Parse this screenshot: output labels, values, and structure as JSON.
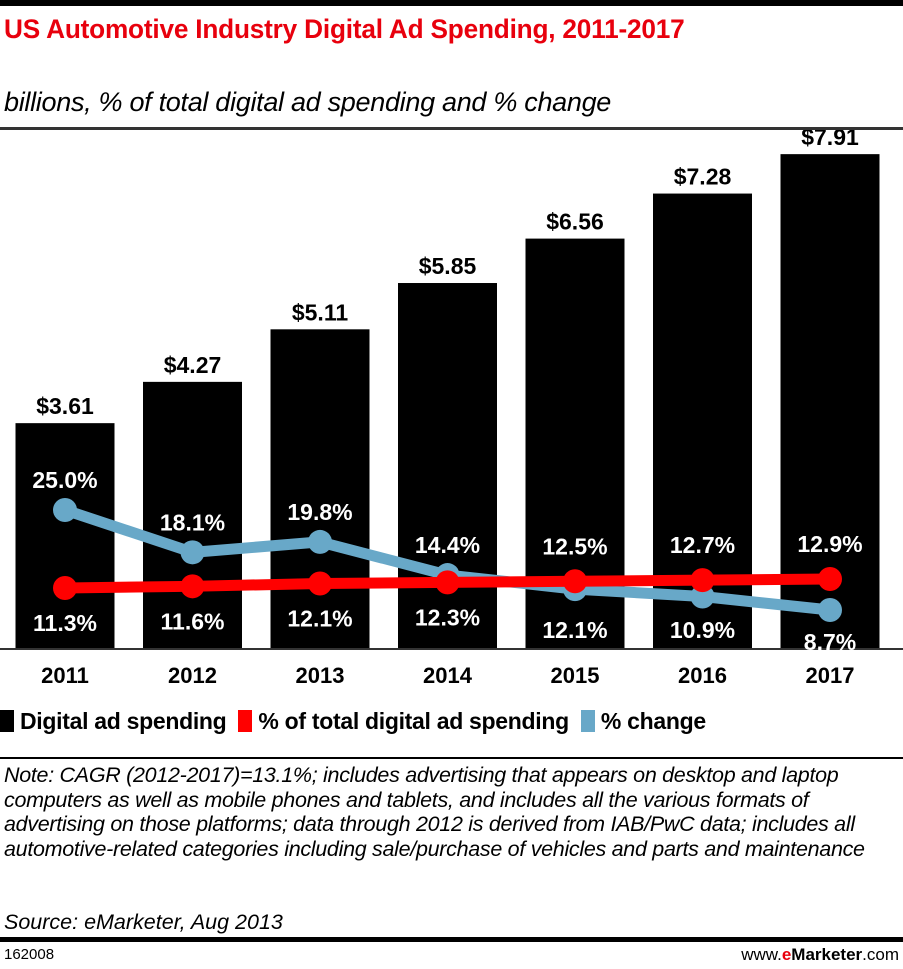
{
  "header": {
    "title": "US Automotive Industry Digital Ad Spending, 2011-2017",
    "subtitle": "billions, % of total digital ad spending and % change"
  },
  "colors": {
    "title": "#e8000d",
    "bars": "#000000",
    "share_line": "#ff0000",
    "change_line": "#68a8c8",
    "label_on_bar": "#ffffff"
  },
  "legend": {
    "items": [
      {
        "label": "Digital ad spending",
        "color": "#000000"
      },
      {
        "label": "% of total digital ad spending",
        "color": "#ff0000"
      },
      {
        "label": "% change",
        "color": "#68a8c8"
      }
    ]
  },
  "chart_data": {
    "type": "bar",
    "title": "US Automotive Industry Digital Ad Spending, 2011-2017",
    "subtitle": "billions, % of total digital ad spending and % change",
    "xlabel": "",
    "ylabel": "",
    "grid": false,
    "legend_position": "bottom",
    "categories": [
      "2011",
      "2012",
      "2013",
      "2014",
      "2015",
      "2016",
      "2017"
    ],
    "ylim": [
      0,
      8.2
    ],
    "series": [
      {
        "name": "Digital ad spending",
        "type": "bar",
        "unit": "billions USD",
        "values": [
          3.61,
          4.27,
          5.11,
          5.85,
          6.56,
          7.28,
          7.91
        ],
        "labels": [
          "$3.61",
          "$4.27",
          "$5.11",
          "$5.85",
          "$6.56",
          "$7.28",
          "$7.91"
        ]
      },
      {
        "name": "% of total digital ad spending",
        "type": "line",
        "unit": "%",
        "values": [
          11.3,
          11.6,
          12.1,
          12.3,
          12.5,
          12.7,
          12.9
        ],
        "labels": [
          "11.3%",
          "11.6%",
          "12.1%",
          "12.3%",
          "12.5%",
          "12.7%",
          "12.9%"
        ]
      },
      {
        "name": "% change",
        "type": "line",
        "unit": "%",
        "values": [
          25.0,
          18.1,
          19.8,
          14.4,
          12.1,
          10.9,
          8.7
        ],
        "labels": [
          "25.0%",
          "18.1%",
          "19.8%",
          "14.4%",
          "12.1%",
          "10.9%",
          "8.7%"
        ]
      }
    ]
  },
  "footer": {
    "note": "Note: CAGR (2012-2017)=13.1%; includes advertising that appears on desktop and laptop computers as well as mobile phones and tablets, and includes all the various formats of advertising on those platforms; data through 2012 is derived from IAB/PwC data; includes all automotive-related categories including sale/purchase of vehicles and parts and maintenance",
    "source": "Source: eMarketer, Aug 2013",
    "chart_id": "162008",
    "brand_prefix": "www.",
    "brand_e": "e",
    "brand_name": "Marketer",
    "brand_suffix": ".com"
  }
}
